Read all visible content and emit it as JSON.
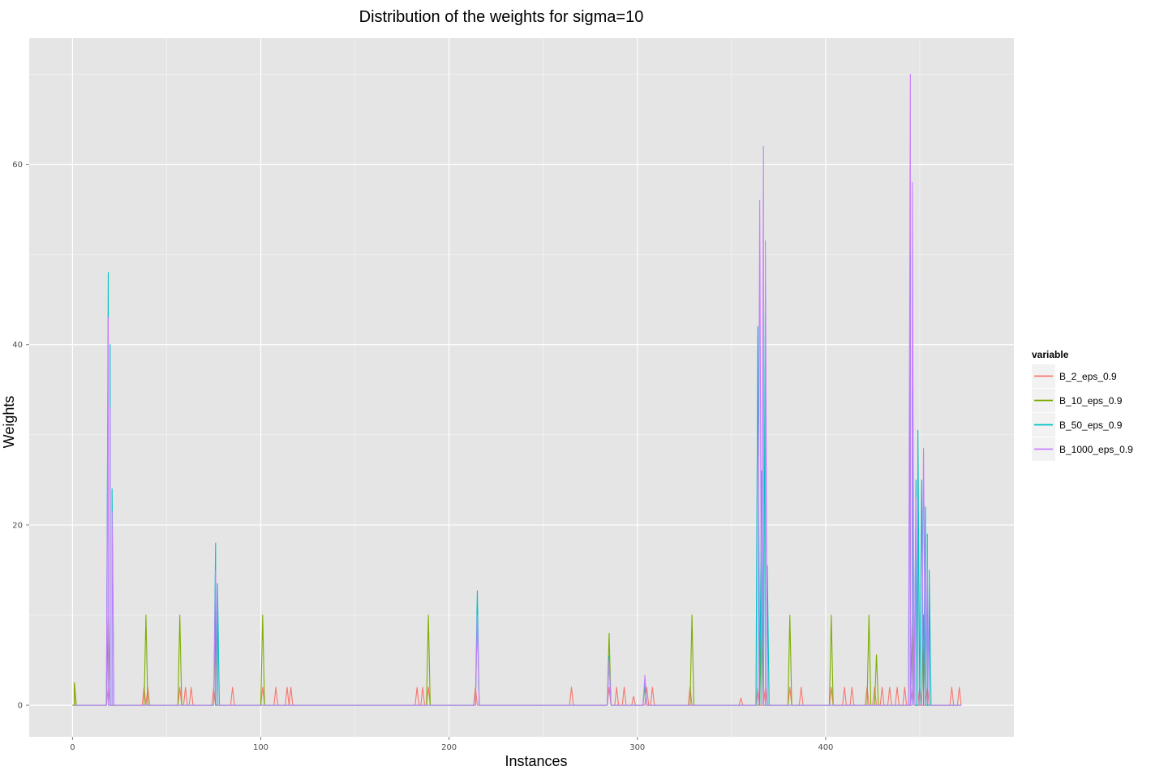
{
  "chart_data": {
    "type": "line",
    "title": "Distribution of the weights for sigma=10",
    "xlabel": "Instances",
    "ylabel": "Weights",
    "xlim": [
      -23,
      500
    ],
    "ylim": [
      -3.5,
      74
    ],
    "x_ticks": [
      0,
      100,
      200,
      300,
      400
    ],
    "y_ticks": [
      0,
      20,
      40,
      60
    ],
    "grid": true,
    "legend": {
      "title": "variable",
      "position": "right"
    },
    "series": [
      {
        "name": "B_2_eps_0.9",
        "color": "#F8766D",
        "spikes": [
          [
            1,
            2.5
          ],
          [
            19,
            2
          ],
          [
            38,
            2
          ],
          [
            40,
            2
          ],
          [
            57,
            2
          ],
          [
            60,
            2
          ],
          [
            63,
            2
          ],
          [
            75,
            2
          ],
          [
            85,
            2
          ],
          [
            101,
            2
          ],
          [
            108,
            2
          ],
          [
            114,
            2
          ],
          [
            116,
            2
          ],
          [
            183,
            2
          ],
          [
            186,
            2
          ],
          [
            189,
            2
          ],
          [
            214,
            2
          ],
          [
            265,
            2
          ],
          [
            285,
            2
          ],
          [
            289,
            2
          ],
          [
            293,
            2
          ],
          [
            298,
            1
          ],
          [
            305,
            2
          ],
          [
            308,
            2
          ],
          [
            328,
            2
          ],
          [
            355,
            0.8
          ],
          [
            364,
            2
          ],
          [
            368,
            2
          ],
          [
            381,
            2
          ],
          [
            387,
            2
          ],
          [
            403,
            2
          ],
          [
            410,
            2
          ],
          [
            414,
            2
          ],
          [
            422,
            2
          ],
          [
            426,
            2
          ],
          [
            430,
            2
          ],
          [
            434,
            2
          ],
          [
            438,
            2
          ],
          [
            442,
            2
          ],
          [
            446,
            2
          ],
          [
            450,
            2
          ],
          [
            454,
            2
          ],
          [
            467,
            2
          ],
          [
            471,
            2
          ]
        ]
      },
      {
        "name": "B_10_eps_0.9",
        "color": "#7CAE00",
        "spikes": [
          [
            1,
            2.5
          ],
          [
            19,
            10
          ],
          [
            39,
            10
          ],
          [
            57,
            10
          ],
          [
            76,
            10
          ],
          [
            101,
            10
          ],
          [
            189,
            10
          ],
          [
            215,
            10
          ],
          [
            285,
            8
          ],
          [
            304,
            2
          ],
          [
            329,
            10
          ],
          [
            366,
            10
          ],
          [
            381,
            10
          ],
          [
            403,
            10
          ],
          [
            423,
            10
          ],
          [
            427,
            5.6
          ],
          [
            446,
            10
          ],
          [
            452,
            10
          ]
        ]
      },
      {
        "name": "B_50_eps_0.9",
        "color": "#00BFC4",
        "spikes": [
          [
            19,
            48
          ],
          [
            20,
            40
          ],
          [
            21,
            24
          ],
          [
            76,
            18
          ],
          [
            77,
            13.5
          ],
          [
            215,
            12.7
          ],
          [
            285,
            5.5
          ],
          [
            304,
            2.5
          ],
          [
            364,
            42
          ],
          [
            366,
            26
          ],
          [
            368,
            46.5
          ],
          [
            369,
            15.5
          ],
          [
            445,
            50
          ],
          [
            446,
            35
          ],
          [
            448,
            25
          ],
          [
            449,
            30.5
          ],
          [
            451,
            25
          ],
          [
            453,
            22
          ],
          [
            454,
            19
          ],
          [
            455,
            15
          ]
        ]
      },
      {
        "name": "B_1000_eps_0.9",
        "color": "#C77CFF",
        "spikes": [
          [
            19,
            43
          ],
          [
            20,
            33
          ],
          [
            21,
            21.5
          ],
          [
            76,
            15
          ],
          [
            215,
            10
          ],
          [
            285,
            5
          ],
          [
            304,
            3.3
          ],
          [
            365,
            56
          ],
          [
            367,
            62
          ],
          [
            368,
            51.5
          ],
          [
            445,
            70
          ],
          [
            446,
            58
          ],
          [
            448,
            23
          ],
          [
            452,
            28.5
          ],
          [
            454,
            15
          ]
        ]
      }
    ]
  }
}
